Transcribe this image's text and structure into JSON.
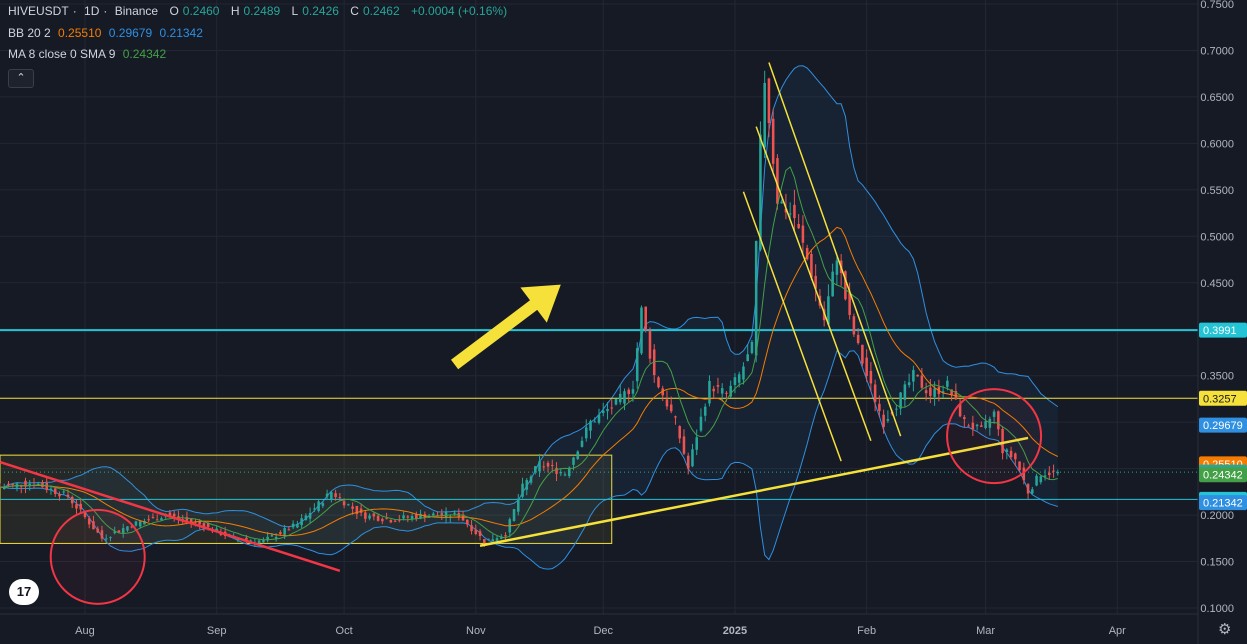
{
  "header": {
    "symbol": "HIVEUSDT",
    "interval": "1D",
    "exchange": "Binance",
    "open_label": "O",
    "open": "0.2460",
    "high_label": "H",
    "high": "0.2489",
    "low_label": "L",
    "low": "0.2426",
    "close_label": "C",
    "close": "0.2462",
    "change": "+0.0004 (+0.16%)",
    "bb_label": "BB 20 2",
    "bb_basis": "0.25510",
    "bb_upper": "0.29679",
    "bb_lower": "0.21342",
    "ma_label": "MA 8 close 0 SMA 9",
    "ma_value": "0.24342"
  },
  "colors": {
    "background": "#161a25",
    "grid": "#232734",
    "text": "#b2b5be",
    "up": "#26a69a",
    "down": "#ef5350",
    "bb_band": "#2f8fe0",
    "bb_basis": "#f57c00",
    "ma": "#43a047",
    "resistance_line": "#22c4d6",
    "yellow": "#f5e13a",
    "red_drawing": "#f23645"
  },
  "chart_data": {
    "type": "candlestick",
    "title": "HIVEUSDT · 1D · Binance",
    "y_axis": {
      "scale": "linear",
      "min": 0.1,
      "max": 0.75,
      "ticks": [
        "0.1000",
        "0.1500",
        "0.2000",
        "0.2500",
        "0.3000",
        "0.3500",
        "0.4000",
        "0.4500",
        "0.5000",
        "0.5500",
        "0.6000",
        "0.6500",
        "0.7000",
        "0.7500"
      ]
    },
    "x_axis": {
      "range": [
        "2024-07-12",
        "2025-04-20"
      ],
      "ticks": [
        {
          "date": "2024-08-01",
          "label": "Aug"
        },
        {
          "date": "2024-09-01",
          "label": "Sep"
        },
        {
          "date": "2024-10-01",
          "label": "Oct"
        },
        {
          "date": "2024-11-01",
          "label": "Nov"
        },
        {
          "date": "2024-12-01",
          "label": "Dec"
        },
        {
          "date": "2025-01-01",
          "label": "2025"
        },
        {
          "date": "2025-02-01",
          "label": "Feb"
        },
        {
          "date": "2025-03-01",
          "label": "Mar"
        },
        {
          "date": "2025-04-01",
          "label": "Apr"
        }
      ]
    },
    "grid": true,
    "price_key_points": [
      {
        "date": "2024-07-12",
        "price": 0.23
      },
      {
        "date": "2024-07-20",
        "price": 0.235
      },
      {
        "date": "2024-07-28",
        "price": 0.22
      },
      {
        "date": "2024-08-05",
        "price": 0.175
      },
      {
        "date": "2024-08-12",
        "price": 0.19
      },
      {
        "date": "2024-08-20",
        "price": 0.2
      },
      {
        "date": "2024-08-28",
        "price": 0.19
      },
      {
        "date": "2024-09-05",
        "price": 0.175
      },
      {
        "date": "2024-09-12",
        "price": 0.172
      },
      {
        "date": "2024-09-20",
        "price": 0.19
      },
      {
        "date": "2024-09-28",
        "price": 0.225
      },
      {
        "date": "2024-10-05",
        "price": 0.2
      },
      {
        "date": "2024-10-12",
        "price": 0.195
      },
      {
        "date": "2024-10-20",
        "price": 0.2
      },
      {
        "date": "2024-10-28",
        "price": 0.2
      },
      {
        "date": "2024-11-03",
        "price": 0.172
      },
      {
        "date": "2024-11-08",
        "price": 0.18
      },
      {
        "date": "2024-11-12",
        "price": 0.23
      },
      {
        "date": "2024-11-16",
        "price": 0.255
      },
      {
        "date": "2024-11-22",
        "price": 0.245
      },
      {
        "date": "2024-11-28",
        "price": 0.3
      },
      {
        "date": "2024-12-04",
        "price": 0.32
      },
      {
        "date": "2024-12-08",
        "price": 0.34
      },
      {
        "date": "2024-12-10",
        "price": 0.42
      },
      {
        "date": "2024-12-13",
        "price": 0.35
      },
      {
        "date": "2024-12-18",
        "price": 0.3
      },
      {
        "date": "2024-12-21",
        "price": 0.25
      },
      {
        "date": "2024-12-26",
        "price": 0.34
      },
      {
        "date": "2024-12-30",
        "price": 0.33
      },
      {
        "date": "2025-01-02",
        "price": 0.35
      },
      {
        "date": "2025-01-05",
        "price": 0.38
      },
      {
        "date": "2025-01-07",
        "price": 0.6
      },
      {
        "date": "2025-01-08",
        "price": 0.67
      },
      {
        "date": "2025-01-11",
        "price": 0.54
      },
      {
        "date": "2025-01-15",
        "price": 0.52
      },
      {
        "date": "2025-01-19",
        "price": 0.46
      },
      {
        "date": "2025-01-22",
        "price": 0.41
      },
      {
        "date": "2025-01-25",
        "price": 0.48
      },
      {
        "date": "2025-01-28",
        "price": 0.41
      },
      {
        "date": "2025-02-01",
        "price": 0.35
      },
      {
        "date": "2025-02-05",
        "price": 0.3
      },
      {
        "date": "2025-02-08",
        "price": 0.32
      },
      {
        "date": "2025-02-12",
        "price": 0.35
      },
      {
        "date": "2025-02-16",
        "price": 0.33
      },
      {
        "date": "2025-02-20",
        "price": 0.34
      },
      {
        "date": "2025-02-24",
        "price": 0.3
      },
      {
        "date": "2025-02-28",
        "price": 0.29
      },
      {
        "date": "2025-03-03",
        "price": 0.31
      },
      {
        "date": "2025-03-05",
        "price": 0.27
      },
      {
        "date": "2025-03-08",
        "price": 0.26
      },
      {
        "date": "2025-03-11",
        "price": 0.225
      },
      {
        "date": "2025-03-14",
        "price": 0.245
      },
      {
        "date": "2025-03-18",
        "price": 0.2462
      }
    ],
    "horizontal_levels": [
      {
        "name": "resistance",
        "price": 0.3991,
        "label": "0.3991",
        "color": "#22c4d6"
      },
      {
        "name": "level-yellow",
        "price": 0.3257,
        "label": "0.3257",
        "color": "#f5e13a"
      },
      {
        "name": "support",
        "price": 0.2169,
        "label": "0.2169",
        "color": "#22c4d6"
      }
    ],
    "last_values": [
      {
        "name": "bb_upper",
        "price": 0.29679,
        "label": "0.29679",
        "color": "#2f8fe0"
      },
      {
        "name": "bb_basis",
        "price": 0.2551,
        "label": "0.25510",
        "color": "#f57c00"
      },
      {
        "name": "close",
        "price": 0.2462,
        "label": "0.2462",
        "color": "#26a69a"
      },
      {
        "name": "ma",
        "price": 0.24342,
        "label": "0.24342",
        "color": "#43a047"
      },
      {
        "name": "bb_lower",
        "price": 0.21342,
        "label": "0.21342",
        "color": "#2f8fe0"
      }
    ],
    "drawings": {
      "range_box": {
        "from": "2024-07-12",
        "to": "2024-12-03",
        "top": 0.2645,
        "bottom": 0.1695
      },
      "trendlines": [
        {
          "name": "yellow-support-trendline",
          "color": "#f5e13a",
          "p1": {
            "date": "2024-11-02",
            "price": 0.167
          },
          "p2": {
            "date": "2025-03-11",
            "price": 0.283
          }
        },
        {
          "name": "red-downtrend-line",
          "color": "#f23645",
          "p1": {
            "date": "2024-07-12",
            "price": 0.257
          },
          "p2": {
            "date": "2024-09-30",
            "price": 0.14
          }
        },
        {
          "name": "yellow-channel-upper",
          "color": "#f5e13a",
          "p1": {
            "date": "2025-01-09",
            "price": 0.687
          },
          "p2": {
            "date": "2025-02-09",
            "price": 0.285
          }
        },
        {
          "name": "yellow-channel-mid",
          "color": "#f5e13a",
          "p1": {
            "date": "2025-01-06",
            "price": 0.618
          },
          "p2": {
            "date": "2025-02-02",
            "price": 0.28
          }
        },
        {
          "name": "yellow-channel-lower",
          "color": "#f5e13a",
          "p1": {
            "date": "2025-01-03",
            "price": 0.548
          },
          "p2": {
            "date": "2025-01-26",
            "price": 0.258
          }
        }
      ],
      "circles": [
        {
          "name": "circle-august",
          "date": "2024-08-04",
          "price": 0.155
        },
        {
          "name": "circle-march",
          "date": "2025-03-03",
          "price": 0.285
        }
      ],
      "arrow": {
        "from": {
          "date": "2024-10-27",
          "price": 0.362
        },
        "to": {
          "date": "2024-11-21",
          "price": 0.448
        }
      }
    }
  }
}
